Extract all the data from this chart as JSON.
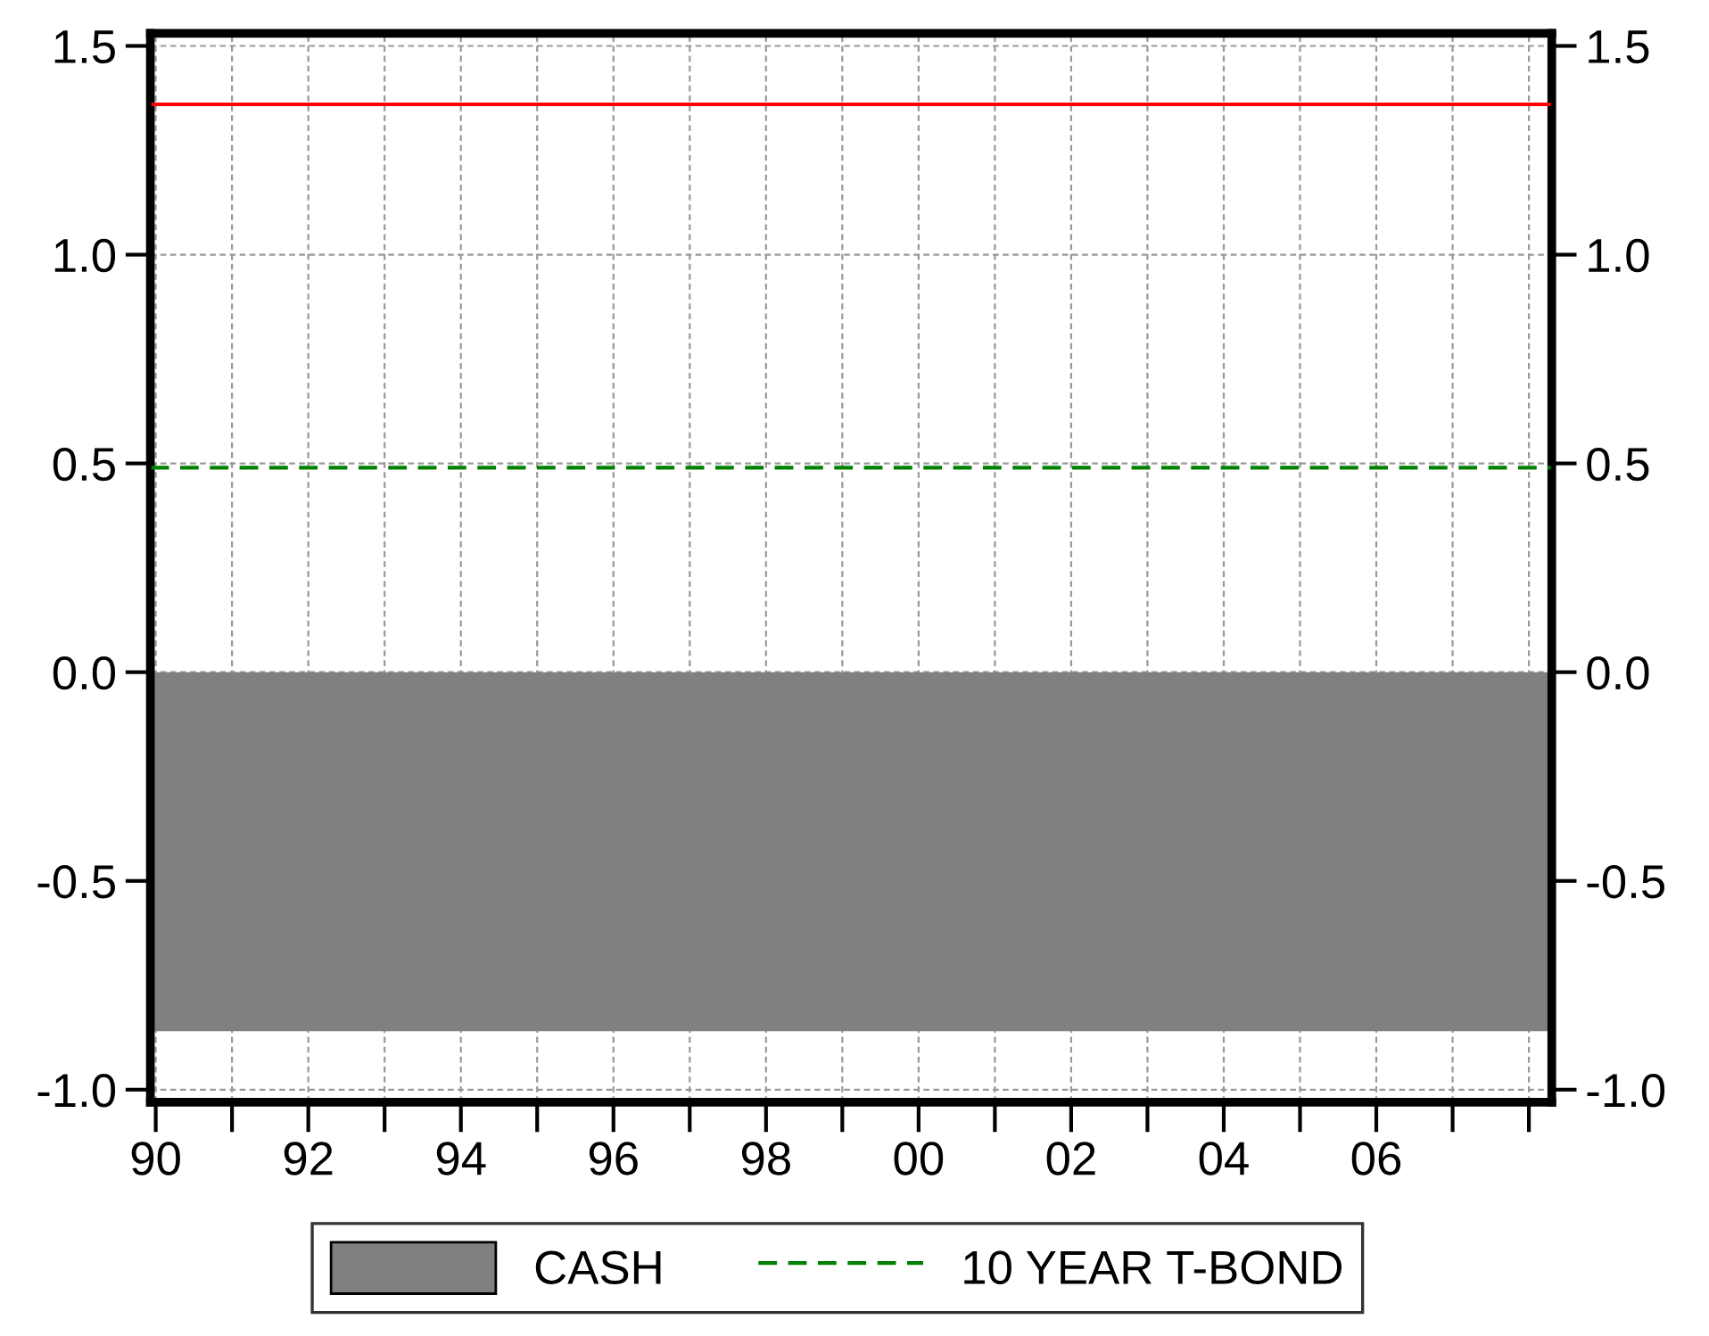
{
  "chart_data": {
    "type": "line",
    "x": [
      1989.93,
      2008.3
    ],
    "series": [
      {
        "name": "CASH",
        "type": "area",
        "color": "#808080",
        "values": [
          -0.86,
          -0.86
        ]
      },
      {
        "color": "#ff0000",
        "line_style": "solid",
        "values": [
          1.36,
          1.36
        ]
      },
      {
        "name": "10 YEAR T-BOND",
        "color": "#008000",
        "line_style": "dashed",
        "values": [
          0.49,
          0.49
        ]
      }
    ],
    "xlim": [
      1989.93,
      2008.3
    ],
    "xticks": [
      {
        "value": 1990,
        "label": "90"
      },
      {
        "value": 1991,
        "label": null
      },
      {
        "value": 1992,
        "label": "92"
      },
      {
        "value": 1993,
        "label": null
      },
      {
        "value": 1994,
        "label": "94"
      },
      {
        "value": 1995,
        "label": null
      },
      {
        "value": 1996,
        "label": "96"
      },
      {
        "value": 1997,
        "label": null
      },
      {
        "value": 1998,
        "label": "98"
      },
      {
        "value": 1999,
        "label": null
      },
      {
        "value": 2000,
        "label": "00"
      },
      {
        "value": 2001,
        "label": null
      },
      {
        "value": 2002,
        "label": "02"
      },
      {
        "value": 2003,
        "label": null
      },
      {
        "value": 2004,
        "label": "04"
      },
      {
        "value": 2005,
        "label": null
      },
      {
        "value": 2006,
        "label": "06"
      },
      {
        "value": 2007,
        "label": null
      },
      {
        "value": 2008,
        "label": null
      }
    ],
    "ylim": [
      -1.03,
      1.53
    ],
    "yticks": [
      {
        "value": -1,
        "label": "-1.0"
      },
      {
        "value": -0.5,
        "label": "-0.5"
      },
      {
        "value": 0,
        "label": "0.0"
      },
      {
        "value": 0.5,
        "label": "0.5"
      },
      {
        "value": 1,
        "label": "1.0"
      },
      {
        "value": 1.5,
        "label": "1.5"
      }
    ],
    "y2lim": [
      -1.03,
      1.53
    ],
    "y2ticks": [
      {
        "value": -1,
        "label": "-1.0"
      },
      {
        "value": -0.5,
        "label": "-0.5"
      },
      {
        "value": 0,
        "label": "0.0"
      },
      {
        "value": 0.5,
        "label": "0.5"
      },
      {
        "value": 1,
        "label": "1.0"
      },
      {
        "value": 1.5,
        "label": "1.5"
      }
    ],
    "grid": true,
    "legend": "bottom"
  }
}
